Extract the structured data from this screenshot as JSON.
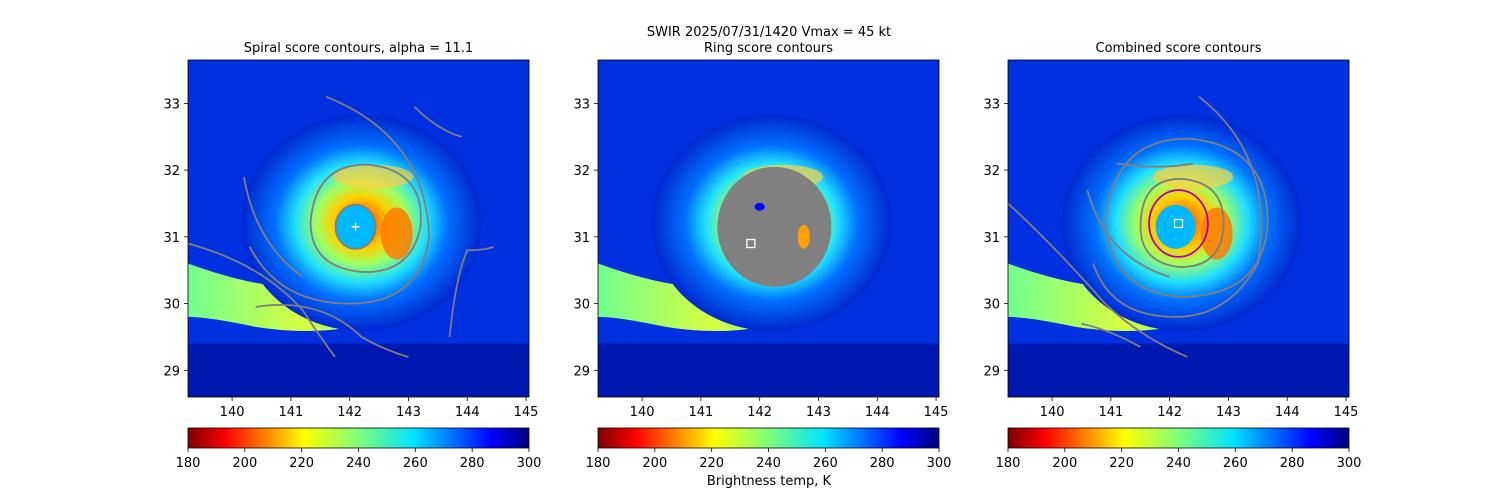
{
  "suptitle_line": "SWIR  2025/07/31/1420    Vmax = 45 kt",
  "colorbar_label": "Brightness temp, K",
  "panels": [
    {
      "title": "Spiral score contours, alpha = 11.1",
      "marker": "plus"
    },
    {
      "title": "Ring score contours",
      "marker": "square"
    },
    {
      "title": "Combined score contours",
      "marker": "square"
    }
  ],
  "colors": {
    "contour": "#7f7f7f",
    "ring_circle": "#b000b0",
    "marker": "#ffffff"
  },
  "chart_data": {
    "type": "heatmap",
    "x_axis": {
      "lim": [
        139.25,
        145.05
      ],
      "ticks": [
        140,
        141,
        142,
        143,
        144,
        145
      ]
    },
    "y_axis": {
      "lim": [
        28.6,
        33.65
      ],
      "ticks": [
        29,
        30,
        31,
        32,
        33
      ]
    },
    "colorbar": {
      "colormap": "jet_r",
      "range": [
        180,
        300
      ],
      "ticks": [
        180,
        200,
        220,
        240,
        260,
        280,
        300
      ]
    },
    "storm_center": [
      142.1,
      31.15
    ],
    "panels": [
      {
        "name": "Spiral score contours",
        "center_marker": [
          142.1,
          31.15
        ]
      },
      {
        "name": "Ring score contours",
        "center_marker": [
          141.85,
          30.9
        ]
      },
      {
        "name": "Combined score contours",
        "center_marker": [
          142.15,
          31.2
        ],
        "ring": {
          "center": [
            142.15,
            31.2
          ],
          "radius_deg": 0.5
        }
      }
    ]
  }
}
